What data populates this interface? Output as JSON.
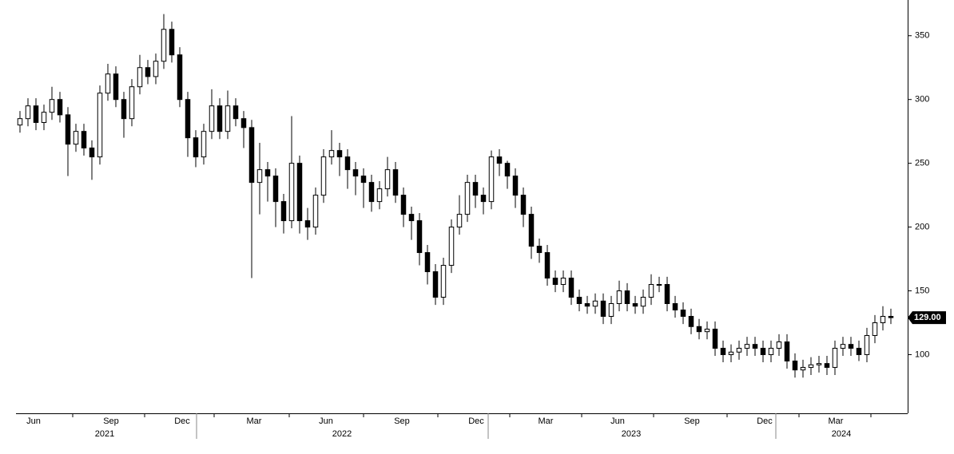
{
  "chart_data": {
    "type": "candlestick",
    "open": [
      280,
      285,
      295,
      282,
      290,
      300,
      288,
      265,
      275,
      262,
      255,
      305,
      320,
      300,
      285,
      310,
      325,
      318,
      330,
      355,
      335,
      300,
      270,
      255,
      275,
      295,
      275,
      295,
      285,
      278,
      235,
      245,
      240,
      220,
      205,
      250,
      205,
      200,
      225,
      255,
      260,
      255,
      245,
      240,
      235,
      220,
      230,
      245,
      225,
      210,
      205,
      180,
      165,
      145,
      170,
      200,
      210,
      235,
      225,
      220,
      255,
      250,
      240,
      225,
      210,
      185,
      180,
      160,
      155,
      160,
      145,
      140,
      138,
      142,
      130,
      140,
      150,
      140,
      138,
      145,
      155,
      155,
      140,
      135,
      130,
      122,
      118,
      120,
      105,
      100,
      102,
      105,
      108,
      105,
      100,
      105,
      110,
      95,
      88,
      90,
      92,
      93,
      90,
      105,
      108,
      105,
      100,
      115,
      125,
      130
    ],
    "high": [
      291,
      301,
      301,
      296,
      310,
      306,
      294,
      281,
      281,
      268,
      311,
      328,
      326,
      306,
      316,
      335,
      331,
      336,
      367,
      361,
      341,
      306,
      276,
      281,
      308,
      301,
      307,
      301,
      291,
      284,
      266,
      251,
      246,
      226,
      287,
      256,
      215,
      231,
      261,
      276,
      266,
      261,
      251,
      246,
      241,
      236,
      255,
      251,
      231,
      216,
      211,
      186,
      171,
      176,
      206,
      225,
      241,
      241,
      231,
      260,
      261,
      252,
      246,
      231,
      216,
      191,
      186,
      166,
      166,
      166,
      151,
      146,
      148,
      148,
      146,
      158,
      156,
      146,
      151,
      163,
      161,
      161,
      146,
      141,
      136,
      128,
      126,
      126,
      111,
      108,
      111,
      114,
      114,
      111,
      111,
      116,
      116,
      101,
      96,
      98,
      99,
      99,
      111,
      114,
      114,
      111,
      121,
      131,
      138,
      136
    ],
    "low": [
      274,
      279,
      276,
      276,
      284,
      282,
      240,
      259,
      256,
      237,
      249,
      299,
      294,
      270,
      279,
      304,
      312,
      312,
      324,
      329,
      294,
      255,
      247,
      249,
      269,
      269,
      269,
      279,
      262,
      160,
      210,
      220,
      200,
      195,
      199,
      195,
      190,
      194,
      219,
      249,
      240,
      230,
      225,
      215,
      212,
      214,
      224,
      219,
      200,
      190,
      170,
      155,
      139,
      139,
      164,
      194,
      204,
      215,
      210,
      214,
      240,
      230,
      215,
      200,
      175,
      172,
      154,
      149,
      149,
      139,
      134,
      132,
      132,
      124,
      124,
      134,
      134,
      132,
      132,
      139,
      149,
      134,
      129,
      124,
      116,
      112,
      112,
      99,
      94,
      94,
      96,
      99,
      99,
      94,
      94,
      99,
      89,
      82,
      82,
      84,
      86,
      84,
      84,
      99,
      99,
      95,
      94,
      109,
      119,
      124
    ],
    "close": [
      285,
      295,
      282,
      290,
      300,
      288,
      265,
      275,
      262,
      255,
      305,
      320,
      300,
      285,
      310,
      325,
      318,
      330,
      355,
      335,
      300,
      270,
      255,
      275,
      295,
      275,
      295,
      285,
      278,
      235,
      245,
      240,
      220,
      205,
      250,
      205,
      200,
      225,
      255,
      260,
      255,
      245,
      240,
      235,
      220,
      230,
      245,
      225,
      210,
      205,
      180,
      165,
      145,
      170,
      200,
      210,
      235,
      225,
      220,
      255,
      250,
      240,
      225,
      210,
      185,
      180,
      160,
      155,
      160,
      145,
      140,
      138,
      142,
      130,
      140,
      150,
      140,
      138,
      145,
      155,
      155,
      140,
      135,
      130,
      122,
      118,
      120,
      105,
      100,
      102,
      105,
      108,
      105,
      100,
      105,
      110,
      95,
      88,
      90,
      92,
      93,
      90,
      105,
      108,
      105,
      100,
      115,
      125,
      130,
      129
    ],
    "last_price": {
      "value": 129,
      "label": "129.00"
    },
    "xlim": [
      0,
      111
    ],
    "xticks": [
      {
        "value": 2.2,
        "label": "Jun"
      },
      {
        "value": 11.9,
        "label": "Sep"
      },
      {
        "value": 20.8,
        "label": "Dec"
      },
      {
        "value": 29.8,
        "label": "Mar"
      },
      {
        "value": 38.8,
        "label": "Jun"
      },
      {
        "value": 48.3,
        "label": "Sep"
      },
      {
        "value": 57.6,
        "label": "Dec"
      },
      {
        "value": 66.3,
        "label": "Mar"
      },
      {
        "value": 75.3,
        "label": "Jun"
      },
      {
        "value": 84.6,
        "label": "Sep"
      },
      {
        "value": 93.7,
        "label": "Dec"
      },
      {
        "value": 102.6,
        "label": "Mar"
      }
    ],
    "x_minor_ticks": [
      7.1,
      16.1,
      24.8,
      34.2,
      43.5,
      52.8,
      61.8,
      70.8,
      79.8,
      89,
      98,
      107
    ],
    "year_labels": [
      {
        "value": 11.1,
        "label": "2021"
      },
      {
        "value": 40.8,
        "label": "2022"
      },
      {
        "value": 77,
        "label": "2023"
      },
      {
        "value": 103.3,
        "label": "2024"
      }
    ],
    "year_breaks": [
      22.6,
      59.1,
      95.1
    ],
    "ylim": [
      54,
      378
    ],
    "yticks": [
      100,
      150,
      200,
      250,
      300,
      350
    ],
    "color": "#000000",
    "up_fill": "#ffffff",
    "down_fill": "#000000"
  }
}
